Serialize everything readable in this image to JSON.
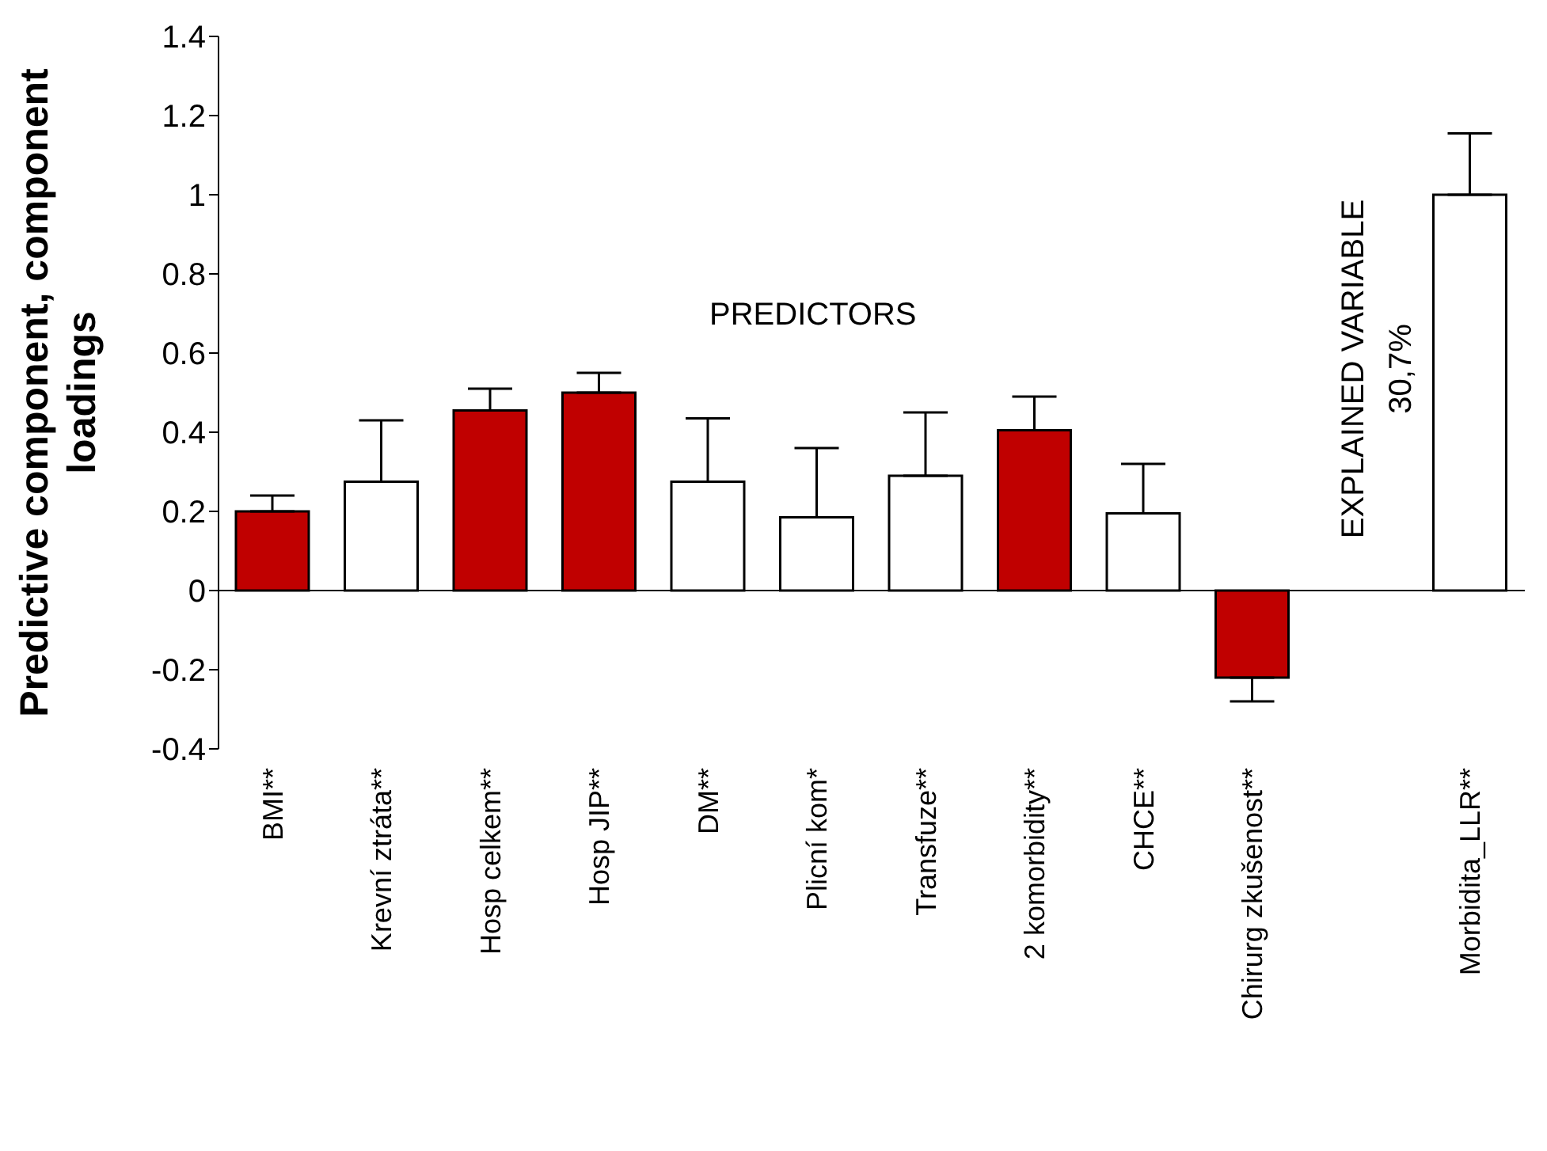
{
  "chart_data": {
    "type": "bar",
    "ylabel": "Predictive component, component loadings",
    "categories": [
      "BMI**",
      "Krevní ztráta**",
      "Hosp celkem**",
      "Hosp JIP**",
      "DM**",
      "Plicní kom*",
      "Transfuze**",
      "2 komorbidity**",
      "CHCE**",
      "Chirurg zkušenost**",
      null,
      "Morbidita_LLR**"
    ],
    "values": [
      0.2,
      0.275,
      0.455,
      0.5,
      0.275,
      0.185,
      0.29,
      0.405,
      0.195,
      -0.22,
      null,
      1.0
    ],
    "errors": [
      [
        0.2,
        0.24
      ],
      [
        0.275,
        0.43
      ],
      [
        0.455,
        0.51
      ],
      [
        0.5,
        0.55
      ],
      [
        0.275,
        0.435
      ],
      [
        0.185,
        0.36
      ],
      [
        0.29,
        0.45
      ],
      [
        0.405,
        0.49
      ],
      [
        0.195,
        0.32
      ],
      [
        -0.28,
        -0.22
      ],
      null,
      [
        1.0,
        1.155
      ]
    ],
    "colors": [
      "#c00000",
      "#ffffff",
      "#c00000",
      "#c00000",
      "#ffffff",
      "#ffffff",
      "#ffffff",
      "#c00000",
      "#ffffff",
      "#c00000",
      "#ffffff",
      "#ffffff"
    ],
    "ylim": [
      -0.4,
      1.4
    ],
    "yticks": [
      -0.4,
      -0.2,
      0,
      0.2,
      0.4,
      0.6,
      0.8,
      1,
      1.2,
      1.4
    ],
    "legend": false,
    "annotations": [
      "PREDICTORS",
      "EXPLAINED VARIABLE\n30,7%"
    ]
  }
}
